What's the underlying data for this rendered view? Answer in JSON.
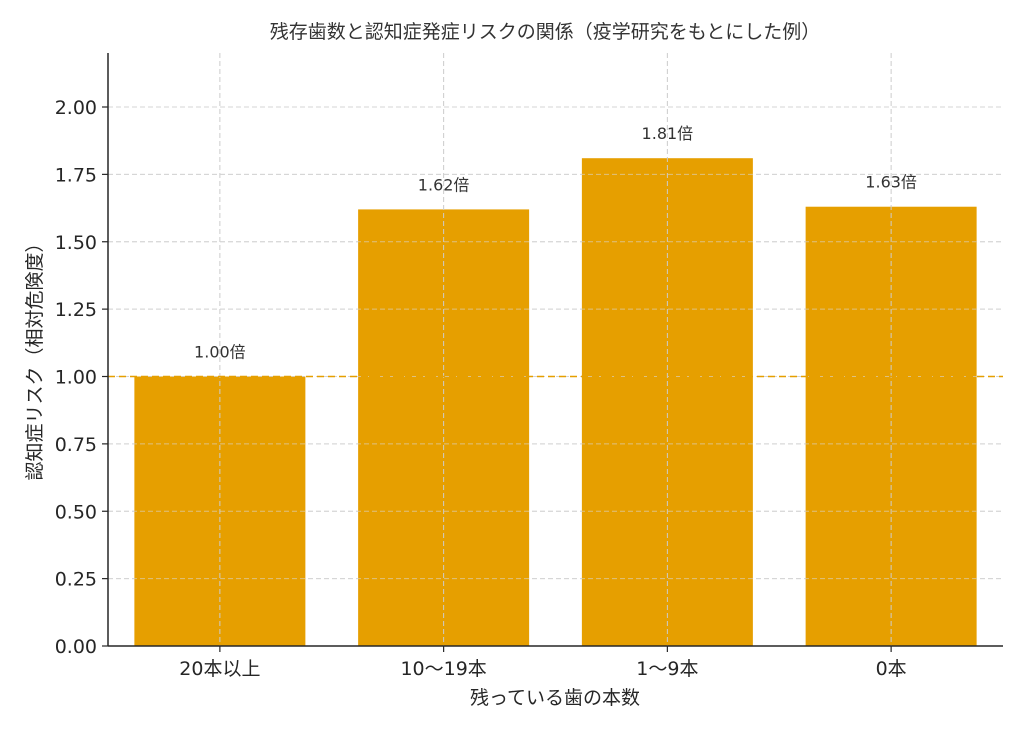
{
  "chart_data": {
    "type": "bar",
    "title": "残存歯数と認知症発症リスクの関係（疫学研究をもとにした例）",
    "xlabel": "残っている歯の本数",
    "ylabel": "認知症リスク（相対危険度）",
    "categories": [
      "20本以上",
      "10〜19本",
      "1〜9本",
      "0本"
    ],
    "values": [
      1.0,
      1.62,
      1.81,
      1.63
    ],
    "data_labels": [
      "1.00倍",
      "1.62倍",
      "1.81倍",
      "1.63倍"
    ],
    "ylim": [
      0,
      2.2
    ],
    "yticks": [
      0.0,
      0.25,
      0.5,
      0.75,
      1.0,
      1.25,
      1.5,
      1.75,
      2.0
    ],
    "ytick_labels": [
      "0.00",
      "0.25",
      "0.50",
      "0.75",
      "1.00",
      "1.25",
      "1.50",
      "1.75",
      "2.00"
    ],
    "reference_line": {
      "y": 1.0,
      "style": "dashed",
      "color": "#E69F00"
    },
    "grid": true,
    "legend": null,
    "bar_color": "#E69F00"
  }
}
